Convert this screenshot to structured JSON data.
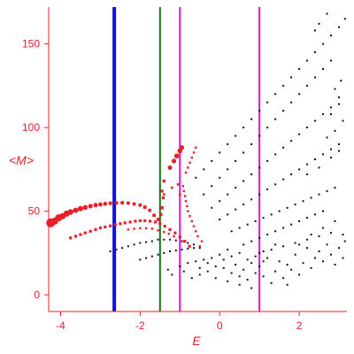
{
  "chart_data": {
    "type": "scatter",
    "xlabel": "E",
    "ylabel": "<M>",
    "xlim": [
      -4.3,
      3.2
    ],
    "ylim": [
      -10,
      172
    ],
    "x_ticks": [
      -4,
      -2,
      0,
      2
    ],
    "y_ticks": [
      0,
      50,
      100,
      150
    ],
    "grid": false,
    "legend": "none",
    "colors": {
      "axis": "#e8202a",
      "red_points": "#e8202a",
      "black_points": "#111111",
      "blue_line": "#1010e0",
      "green_line": "#127812",
      "magenta_line": "#e010e0"
    },
    "vertical_lines": [
      {
        "x": -2.65,
        "color": "#1010e0",
        "width": 4
      },
      {
        "x": -1.5,
        "color": "#127812",
        "width": 2
      },
      {
        "x": -1.0,
        "color": "#e010e0",
        "width": 2
      },
      {
        "x": 1.0,
        "color": "#e010e0",
        "width": 2
      }
    ],
    "series": [
      {
        "color": "#e8202a",
        "points": [
          [
            -4.25,
            43,
            5
          ],
          [
            -4.15,
            44,
            4
          ],
          [
            -4.05,
            46,
            4
          ],
          [
            -3.95,
            47,
            3.5
          ],
          [
            -3.85,
            48.5,
            3.5
          ],
          [
            -3.75,
            49.5,
            3.2
          ],
          [
            -3.62,
            50.5,
            3
          ],
          [
            -3.5,
            51.5,
            3
          ],
          [
            -3.38,
            52.2,
            2.8
          ],
          [
            -3.25,
            53,
            2.6
          ],
          [
            -3.12,
            53.6,
            2.5
          ],
          [
            -3.0,
            54,
            2.4
          ],
          [
            -2.88,
            54.4,
            2.3
          ],
          [
            -2.75,
            54.7,
            2.2
          ],
          [
            -2.6,
            54.9,
            2.2
          ],
          [
            -2.45,
            55,
            2.1
          ],
          [
            -2.3,
            54.8,
            2
          ],
          [
            -2.15,
            54.3,
            2
          ],
          [
            -2.0,
            53.6,
            2
          ],
          [
            -1.88,
            52.4,
            1.9
          ],
          [
            -1.76,
            50.5,
            1.8
          ],
          [
            -1.65,
            47.5,
            1.8
          ],
          [
            -1.55,
            45,
            1.8
          ],
          [
            -1.48,
            48,
            1.8
          ],
          [
            -1.45,
            52,
            1.8
          ],
          [
            -1.42,
            58,
            1.6
          ],
          [
            -1.45,
            62,
            1.6
          ],
          [
            -1.4,
            68,
            1.7
          ],
          [
            -1.25,
            76,
            2.5
          ],
          [
            -1.15,
            80,
            2.6
          ],
          [
            -1.08,
            83,
            2.8
          ],
          [
            -1.0,
            86,
            2.8
          ],
          [
            -0.95,
            88,
            2.6
          ],
          [
            -3.75,
            34,
            1.6
          ],
          [
            -3.62,
            35,
            1.6
          ],
          [
            -3.5,
            36,
            1.6
          ],
          [
            -3.38,
            37,
            1.6
          ],
          [
            -3.25,
            38,
            1.6
          ],
          [
            -3.12,
            39,
            1.6
          ],
          [
            -3.0,
            40,
            1.6
          ],
          [
            -2.88,
            40.5,
            1.6
          ],
          [
            -2.75,
            41.2,
            1.6
          ],
          [
            -2.62,
            42,
            1.6
          ],
          [
            -2.5,
            42.5,
            1.6
          ],
          [
            -2.38,
            43,
            1.6
          ],
          [
            -2.25,
            43.5,
            1.6
          ],
          [
            -2.12,
            44,
            1.6
          ],
          [
            -2.0,
            44.3,
            1.6
          ],
          [
            -1.88,
            44.3,
            1.6
          ],
          [
            -1.75,
            44,
            1.6
          ],
          [
            -1.62,
            43.5,
            1.6
          ],
          [
            -1.5,
            42.5,
            1.6
          ],
          [
            -1.38,
            41,
            1.6
          ],
          [
            -1.25,
            39,
            1.6
          ],
          [
            -1.12,
            37,
            1.6
          ],
          [
            -1.0,
            34.5,
            1.6
          ],
          [
            -0.88,
            32,
            1.6
          ],
          [
            -0.76,
            29,
            1.6
          ],
          [
            -2.3,
            39,
            1.2
          ],
          [
            -2.15,
            39.5,
            1.2
          ],
          [
            -2.0,
            39.8,
            1.2
          ],
          [
            -1.85,
            39.8,
            1.2
          ],
          [
            -1.7,
            39.5,
            1.2
          ],
          [
            -1.55,
            38.5,
            1.2
          ],
          [
            -1.4,
            37.5,
            1.2
          ],
          [
            -1.28,
            36.5,
            1.2
          ],
          [
            -1.15,
            35,
            1.2
          ],
          [
            -0.5,
            29,
            1.2
          ],
          [
            -0.45,
            32,
            1.2
          ],
          [
            -0.55,
            35,
            1.2
          ],
          [
            -0.6,
            38,
            1.2
          ],
          [
            -0.65,
            41,
            1.2
          ],
          [
            -0.7,
            44,
            1.2
          ],
          [
            -0.75,
            47,
            1.2
          ],
          [
            -0.8,
            50,
            1.2
          ],
          [
            -0.82,
            53,
            1.2
          ],
          [
            -0.85,
            56,
            1.2
          ],
          [
            -0.87,
            59,
            1.2
          ],
          [
            -0.9,
            62,
            1.2
          ],
          [
            -0.92,
            65,
            1.2
          ],
          [
            -0.85,
            73,
            1.2
          ],
          [
            -0.8,
            76,
            1.2
          ],
          [
            -0.75,
            79,
            1.2
          ],
          [
            -0.7,
            82,
            1.2
          ],
          [
            -0.65,
            85,
            1.2
          ],
          [
            -0.6,
            88,
            1.2
          ],
          [
            -1.4,
            60,
            1.3
          ],
          [
            -1.2,
            64,
            1.3
          ],
          [
            -1.05,
            66,
            1.3
          ],
          [
            -1.0,
            60,
            1.3
          ]
        ]
      }
    ],
    "black_points": [
      [
        -2.75,
        26
      ],
      [
        -2.6,
        27
      ],
      [
        -2.45,
        28
      ],
      [
        -2.3,
        29
      ],
      [
        -2.15,
        30
      ],
      [
        -2.0,
        31
      ],
      [
        -1.85,
        31.5
      ],
      [
        -1.7,
        32
      ],
      [
        -1.55,
        33
      ],
      [
        -1.4,
        33
      ],
      [
        -1.25,
        33
      ],
      [
        -1.1,
        32.5
      ],
      [
        -0.95,
        32
      ],
      [
        -0.8,
        31
      ],
      [
        -0.65,
        30
      ],
      [
        -2.0,
        21
      ],
      [
        -1.85,
        22
      ],
      [
        -1.7,
        23
      ],
      [
        -1.55,
        24
      ],
      [
        -1.4,
        25
      ],
      [
        -1.25,
        26
      ],
      [
        -1.1,
        26.5
      ],
      [
        -0.95,
        27
      ],
      [
        -0.8,
        27.5
      ],
      [
        -0.65,
        28
      ],
      [
        -0.5,
        28
      ],
      [
        -1.3,
        15
      ],
      [
        -1.0,
        17
      ],
      [
        -0.8,
        19
      ],
      [
        -0.6,
        20
      ],
      [
        -0.4,
        21
      ],
      [
        -0.2,
        22
      ],
      [
        -0.6,
        70
      ],
      [
        -0.4,
        75
      ],
      [
        -0.2,
        80
      ],
      [
        0.0,
        85
      ],
      [
        0.2,
        90
      ],
      [
        0.4,
        95
      ],
      [
        0.6,
        100
      ],
      [
        0.8,
        105
      ],
      [
        1.0,
        110
      ],
      [
        1.2,
        115
      ],
      [
        1.4,
        120
      ],
      [
        1.6,
        125
      ],
      [
        1.8,
        130
      ],
      [
        2.0,
        135
      ],
      [
        2.2,
        140
      ],
      [
        2.4,
        145
      ],
      [
        2.6,
        150
      ],
      [
        2.8,
        155
      ],
      [
        3.0,
        160
      ],
      [
        3.15,
        165
      ],
      [
        -0.4,
        60
      ],
      [
        -0.2,
        65
      ],
      [
        0.0,
        70
      ],
      [
        0.2,
        75
      ],
      [
        0.4,
        80
      ],
      [
        0.6,
        85
      ],
      [
        0.8,
        90
      ],
      [
        1.0,
        95
      ],
      [
        1.2,
        100
      ],
      [
        1.4,
        105
      ],
      [
        1.6,
        110
      ],
      [
        1.8,
        115
      ],
      [
        2.0,
        120
      ],
      [
        2.2,
        125
      ],
      [
        2.4,
        130
      ],
      [
        2.6,
        135
      ],
      [
        2.8,
        140
      ],
      [
        -0.2,
        52
      ],
      [
        0.0,
        56
      ],
      [
        0.2,
        60
      ],
      [
        0.4,
        64
      ],
      [
        0.6,
        68
      ],
      [
        0.8,
        72
      ],
      [
        1.0,
        76
      ],
      [
        1.2,
        80
      ],
      [
        1.4,
        84
      ],
      [
        1.6,
        88
      ],
      [
        1.8,
        92
      ],
      [
        2.0,
        96
      ],
      [
        2.2,
        100
      ],
      [
        2.4,
        104
      ],
      [
        2.6,
        108
      ],
      [
        2.8,
        112
      ],
      [
        3.0,
        114
      ],
      [
        0.0,
        45
      ],
      [
        0.2,
        48
      ],
      [
        0.4,
        51
      ],
      [
        0.6,
        54
      ],
      [
        0.8,
        57
      ],
      [
        1.0,
        60
      ],
      [
        1.2,
        63
      ],
      [
        1.4,
        66
      ],
      [
        1.6,
        69
      ],
      [
        1.8,
        72
      ],
      [
        2.0,
        75
      ],
      [
        2.2,
        78
      ],
      [
        2.4,
        81
      ],
      [
        2.6,
        84
      ],
      [
        2.8,
        87
      ],
      [
        3.0,
        90
      ],
      [
        0.3,
        38
      ],
      [
        0.5,
        40
      ],
      [
        0.7,
        42
      ],
      [
        0.9,
        44
      ],
      [
        1.1,
        46
      ],
      [
        1.3,
        48
      ],
      [
        1.5,
        50
      ],
      [
        1.7,
        52
      ],
      [
        1.9,
        54
      ],
      [
        2.1,
        56
      ],
      [
        2.3,
        58
      ],
      [
        2.5,
        60
      ],
      [
        2.7,
        62
      ],
      [
        2.9,
        64
      ],
      [
        0.6,
        30
      ],
      [
        0.8,
        32
      ],
      [
        1.0,
        34
      ],
      [
        1.2,
        36
      ],
      [
        1.4,
        38
      ],
      [
        1.6,
        40
      ],
      [
        1.8,
        42
      ],
      [
        2.0,
        44
      ],
      [
        2.2,
        46
      ],
      [
        2.4,
        48
      ],
      [
        2.6,
        50
      ],
      [
        1.0,
        25
      ],
      [
        1.3,
        27
      ],
      [
        1.6,
        29
      ],
      [
        1.9,
        31
      ],
      [
        2.2,
        33
      ],
      [
        2.5,
        35
      ],
      [
        2.8,
        37
      ],
      [
        -0.5,
        12
      ],
      [
        -0.3,
        14
      ],
      [
        -0.1,
        10
      ],
      [
        0.1,
        16
      ],
      [
        0.2,
        8
      ],
      [
        0.3,
        13
      ],
      [
        0.4,
        18
      ],
      [
        0.5,
        11
      ],
      [
        0.6,
        15
      ],
      [
        0.7,
        9
      ],
      [
        0.8,
        19
      ],
      [
        0.9,
        13
      ],
      [
        1.0,
        17
      ],
      [
        1.1,
        11
      ],
      [
        1.2,
        22
      ],
      [
        1.3,
        7
      ],
      [
        1.4,
        14
      ],
      [
        1.5,
        20
      ],
      [
        1.6,
        10
      ],
      [
        1.7,
        18
      ],
      [
        1.8,
        15
      ],
      [
        1.9,
        24
      ],
      [
        2.0,
        12
      ],
      [
        2.1,
        19
      ],
      [
        2.2,
        28
      ],
      [
        2.3,
        16
      ],
      [
        2.4,
        22
      ],
      [
        2.5,
        26
      ],
      [
        2.6,
        20
      ],
      [
        2.7,
        30
      ],
      [
        2.8,
        24
      ],
      [
        2.9,
        18
      ],
      [
        3.0,
        28
      ],
      [
        3.1,
        22
      ],
      [
        3.15,
        32
      ],
      [
        0.0,
        24
      ],
      [
        0.2,
        27
      ],
      [
        0.5,
        6
      ],
      [
        0.8,
        4
      ],
      [
        1.1,
        26
      ],
      [
        1.4,
        30
      ],
      [
        1.7,
        6
      ],
      [
        2.0,
        30
      ],
      [
        2.3,
        36
      ],
      [
        2.6,
        40
      ],
      [
        2.9,
        44
      ],
      [
        3.1,
        36
      ],
      [
        -1.2,
        12
      ],
      [
        -0.9,
        14
      ],
      [
        -0.7,
        10
      ],
      [
        -0.5,
        16
      ],
      [
        -0.3,
        19
      ],
      [
        -0.1,
        17
      ],
      [
        0.1,
        21
      ],
      [
        0.3,
        23
      ],
      [
        0.5,
        25
      ],
      [
        0.7,
        21
      ],
      [
        0.9,
        23
      ],
      [
        1.1,
        20
      ],
      [
        2.2,
        72
      ],
      [
        2.5,
        76
      ],
      [
        2.8,
        82
      ],
      [
        3.0,
        86
      ],
      [
        2.7,
        94
      ],
      [
        2.9,
        98
      ],
      [
        3.1,
        104
      ],
      [
        2.8,
        108
      ],
      [
        3.0,
        118
      ],
      [
        2.9,
        123
      ],
      [
        3.05,
        128
      ],
      [
        2.4,
        158
      ],
      [
        2.5,
        162
      ],
      [
        2.7,
        168
      ]
    ]
  }
}
